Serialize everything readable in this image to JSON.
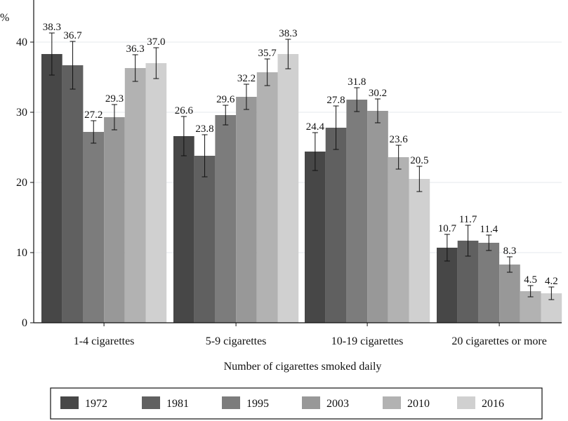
{
  "chart_data": {
    "type": "bar",
    "title": "",
    "ylabel": "%",
    "xlabel": "Number of cigarettes smoked daily",
    "ylim": [
      0,
      43
    ],
    "yticks": [
      0,
      10,
      20,
      30,
      40
    ],
    "grid": "horizontal",
    "legend_position": "bottom",
    "categories": [
      "1-4 cigarettes",
      "5-9 cigarettes",
      "10-19 cigarettes",
      "20 cigarettes or more"
    ],
    "series": [
      {
        "name": "1972",
        "color": "#474747",
        "values": [
          38.3,
          26.6,
          24.4,
          10.7
        ],
        "labels": [
          "38.3",
          "26.6",
          "24.4",
          "10.7"
        ],
        "ci": [
          [
            35.3,
            41.3
          ],
          [
            23.8,
            29.4
          ],
          [
            21.7,
            27.1
          ],
          [
            8.8,
            12.6
          ]
        ]
      },
      {
        "name": "1981",
        "color": "#606060",
        "values": [
          36.7,
          23.8,
          27.8,
          11.7
        ],
        "labels": [
          "36.7",
          "23.8",
          "27.8",
          "11.7"
        ],
        "ci": [
          [
            33.3,
            40.1
          ],
          [
            20.8,
            26.8
          ],
          [
            24.7,
            30.9
          ],
          [
            9.5,
            13.9
          ]
        ]
      },
      {
        "name": "1995",
        "color": "#7c7c7c",
        "values": [
          27.2,
          29.6,
          31.8,
          11.4
        ],
        "labels": [
          "27.2",
          "29.6",
          "31.8",
          "11.4"
        ],
        "ci": [
          [
            25.6,
            28.8
          ],
          [
            28.2,
            31.0
          ],
          [
            30.1,
            33.5
          ],
          [
            10.3,
            12.5
          ]
        ]
      },
      {
        "name": "2003",
        "color": "#989898",
        "values": [
          29.3,
          32.2,
          30.2,
          8.3
        ],
        "labels": [
          "29.3",
          "32.2",
          "30.2",
          "8.3"
        ],
        "ci": [
          [
            27.5,
            31.1
          ],
          [
            30.4,
            34.0
          ],
          [
            28.5,
            31.9
          ],
          [
            7.2,
            9.4
          ]
        ]
      },
      {
        "name": "2010",
        "color": "#b2b2b2",
        "values": [
          36.3,
          35.7,
          23.6,
          4.5
        ],
        "labels": [
          "36.3",
          "35.7",
          "23.6",
          "4.5"
        ],
        "ci": [
          [
            34.4,
            38.2
          ],
          [
            33.8,
            37.6
          ],
          [
            21.9,
            25.3
          ],
          [
            3.7,
            5.3
          ]
        ]
      },
      {
        "name": "2016",
        "color": "#d0d0d0",
        "values": [
          37.0,
          38.3,
          20.5,
          4.2
        ],
        "labels": [
          "37.0",
          "38.3",
          "20.5",
          "4.2"
        ],
        "ci": [
          [
            34.8,
            39.2
          ],
          [
            36.2,
            40.4
          ],
          [
            18.7,
            22.3
          ],
          [
            3.3,
            5.1
          ]
        ]
      }
    ]
  }
}
